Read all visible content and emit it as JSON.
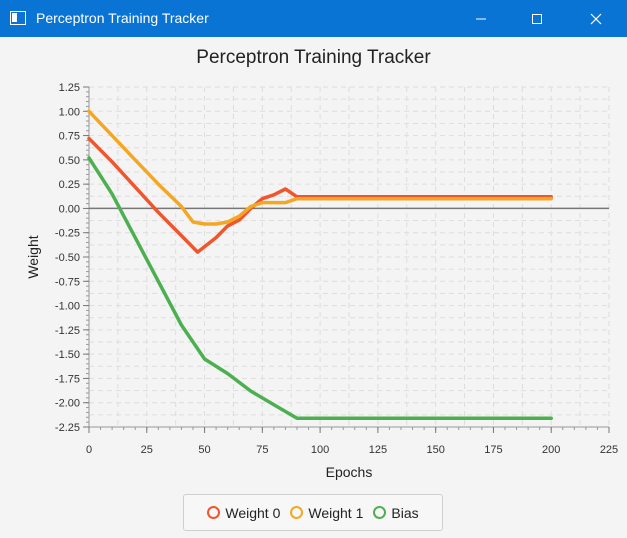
{
  "window": {
    "title": "Perceptron Training Tracker",
    "controls": [
      "minimize",
      "maximize",
      "close"
    ]
  },
  "colors": {
    "titlebar": "#0a74d4",
    "weight0": "#f0562e",
    "weight1": "#f5a623",
    "bias": "#4caf50",
    "grid": "#dddddd",
    "zero_line": "#777777"
  },
  "chart_data": {
    "type": "line",
    "title": "Perceptron Training Tracker",
    "xlabel": "Epochs",
    "ylabel": "Weight",
    "xlim": [
      0,
      225
    ],
    "ylim": [
      -2.25,
      1.25
    ],
    "x_ticks": [
      "0",
      "25",
      "50",
      "75",
      "100",
      "125",
      "150",
      "175",
      "200",
      "225"
    ],
    "y_ticks": [
      "1.25",
      "1.00",
      "0.75",
      "0.50",
      "0.25",
      "0.00",
      "-0.25",
      "-0.50",
      "-0.75",
      "-1.00",
      "-1.25",
      "-1.50",
      "-1.75",
      "-2.00",
      "-2.25"
    ],
    "grid": true,
    "legend_position": "bottom-center",
    "series": [
      {
        "name": "Weight 0",
        "color": "#f0562e",
        "x": [
          0,
          10,
          20,
          30,
          40,
          47,
          55,
          60,
          65,
          70,
          75,
          80,
          85,
          90,
          100,
          150,
          200
        ],
        "y": [
          0.72,
          0.48,
          0.22,
          -0.04,
          -0.28,
          -0.45,
          -0.3,
          -0.18,
          -0.12,
          0.0,
          0.1,
          0.14,
          0.2,
          0.12,
          0.12,
          0.12,
          0.12
        ]
      },
      {
        "name": "Weight 1",
        "color": "#f5a623",
        "x": [
          0,
          10,
          20,
          30,
          40,
          45,
          50,
          55,
          60,
          65,
          70,
          75,
          80,
          85,
          90,
          100,
          150,
          200
        ],
        "y": [
          1.0,
          0.75,
          0.5,
          0.25,
          0.02,
          -0.14,
          -0.16,
          -0.16,
          -0.14,
          -0.08,
          0.02,
          0.06,
          0.06,
          0.06,
          0.1,
          0.1,
          0.1,
          0.1
        ]
      },
      {
        "name": "Bias",
        "color": "#4caf50",
        "x": [
          0,
          10,
          20,
          30,
          40,
          50,
          60,
          70,
          80,
          90,
          100,
          150,
          200
        ],
        "y": [
          0.52,
          0.15,
          -0.3,
          -0.75,
          -1.2,
          -1.55,
          -1.7,
          -1.88,
          -2.02,
          -2.16,
          -2.16,
          -2.16,
          -2.16
        ]
      }
    ]
  }
}
